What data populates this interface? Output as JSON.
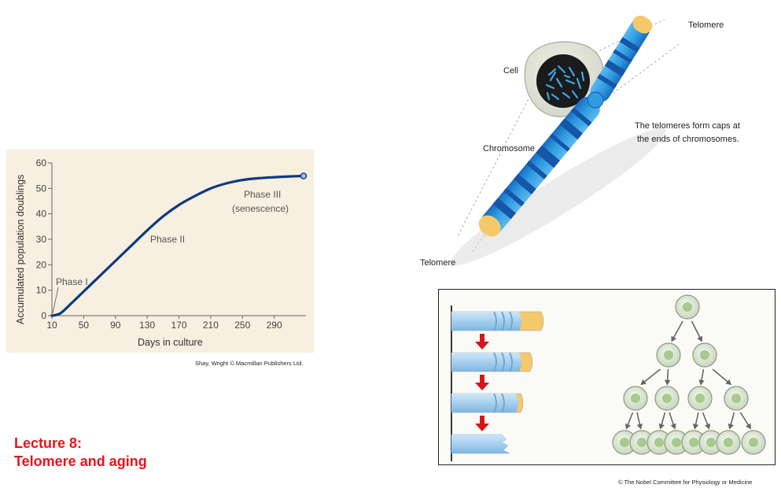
{
  "lecture": {
    "line1": "Lecture 8:",
    "line2": "Telomere and aging"
  },
  "chart_credit": "Shay, Wright © Macmillan Publishers Ltd.",
  "nobel_credit": "© The Nobel Committee for Physiology or Medicine",
  "diagram": {
    "telomere_top": "Telomere",
    "telomere_bottom": "Telomere",
    "cell": "Cell",
    "chromosome": "Chromosome",
    "caption_line1": "The telomeres form caps at",
    "caption_line2": "the ends of chromosomes."
  },
  "colors": {
    "curve": "#0d3a80",
    "lecture_title": "#e8141b",
    "telomere_cap": "#f5c96a",
    "chromosome_light": "#2f9be0",
    "chromosome_dark": "#1556a8",
    "arrow_red": "#d4161b",
    "cell_green": "#a6c98c"
  },
  "chart_data": {
    "type": "line",
    "xlabel": "Days in culture",
    "ylabel": "Accumulated population doublings",
    "xlim": [
      10,
      330
    ],
    "ylim": [
      0,
      60
    ],
    "x_ticks": [
      10,
      50,
      90,
      130,
      170,
      210,
      250,
      290
    ],
    "y_ticks": [
      0,
      10,
      20,
      30,
      40,
      50,
      60
    ],
    "series": [
      {
        "x": [
          10,
          14,
          20,
          25,
          30,
          40,
          50,
          70,
          90,
          110,
          130,
          150,
          170,
          190,
          210,
          230,
          250,
          270,
          290,
          310,
          327
        ],
        "y": [
          0,
          0.2,
          0.8,
          2,
          3.5,
          6.5,
          9.5,
          15.5,
          21.5,
          27.5,
          33.5,
          39,
          43.5,
          47,
          50,
          52,
          53.3,
          54,
          54.4,
          54.7,
          54.9
        ]
      }
    ],
    "annotations": [
      {
        "text": "Phase I"
      },
      {
        "text": "Phase II"
      },
      {
        "text": "Phase III"
      },
      {
        "text": "(senescence)"
      }
    ]
  }
}
